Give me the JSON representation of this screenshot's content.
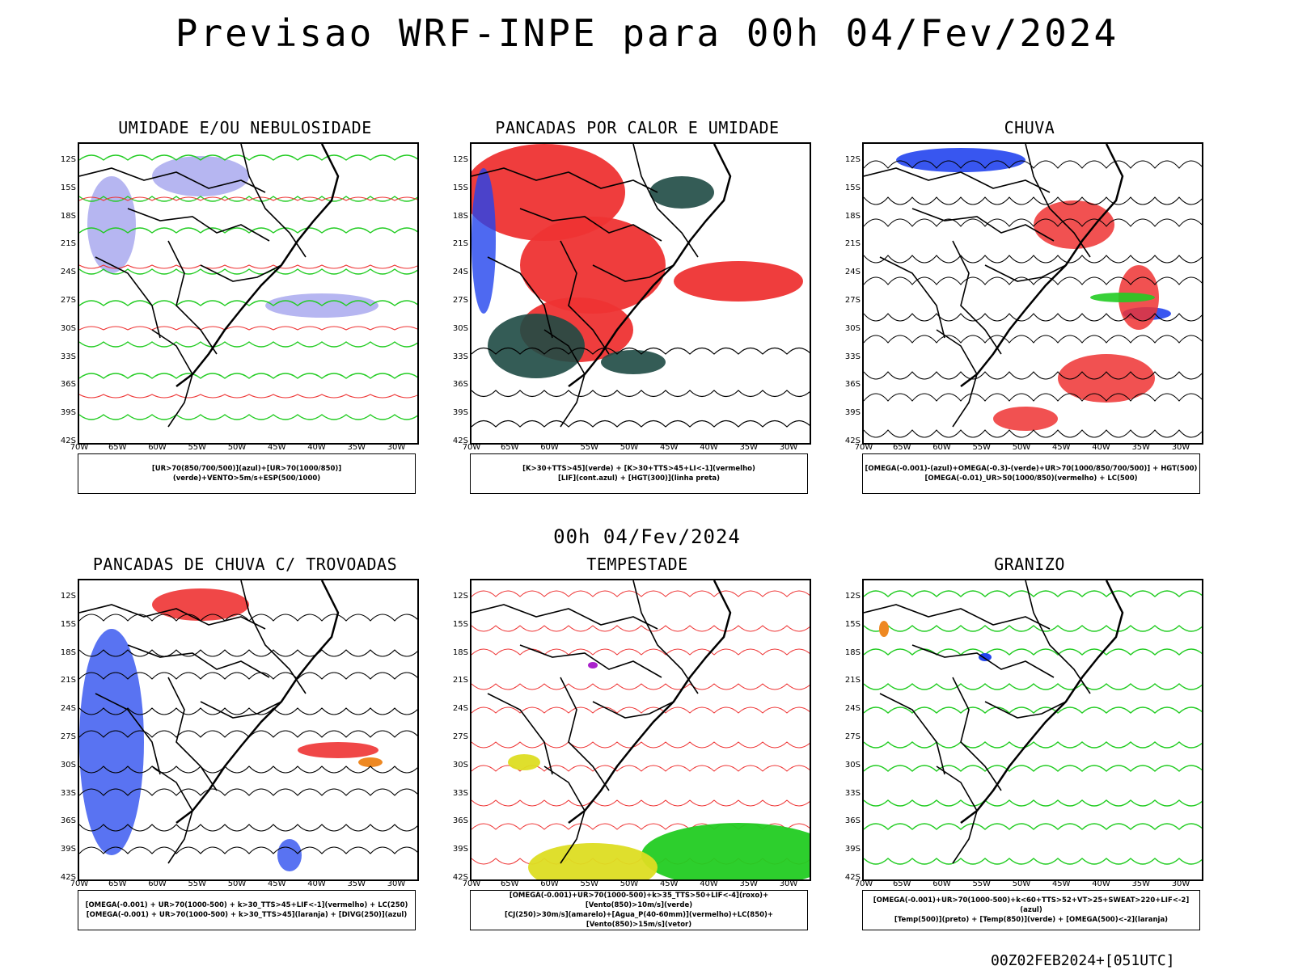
{
  "title": "Previsao WRF-INPE  para 00h 04/Fev/2024",
  "mid_date": "00h 04/Fev/2024",
  "footer": "00Z02FEB2024+[051UTC]",
  "lat_labels": [
    "12S",
    "15S",
    "18S",
    "21S",
    "24S",
    "27S",
    "30S",
    "33S",
    "36S",
    "39S",
    "42S"
  ],
  "lon_labels": [
    "70W",
    "65W",
    "60W",
    "55W",
    "50W",
    "45W",
    "40W",
    "35W",
    "30W"
  ],
  "colors": {
    "blue": "#2244ee",
    "green": "#22cc22",
    "red": "#ee3333",
    "lavender": "#a9a9ee",
    "darkgreen": "#1e4a44",
    "yellow": "#dddd22",
    "orange": "#ee8822",
    "purple": "#aa22cc"
  },
  "panels": [
    {
      "title": "UMIDADE E/OU NEBULOSIDADE",
      "legend": [
        "[UR>70(850/700/500)](azul)+[UR>70(1000/850)](verde)+VENTO>5m/s+ESP(500/1000)"
      ]
    },
    {
      "title": "PANCADAS POR CALOR E UMIDADE",
      "legend": [
        "[K>30+TTS>45](verde) + [K>30+TTS>45+LI<-1](vermelho)",
        "[LIF](cont.azul) + [HGT(300)](linha preta)"
      ]
    },
    {
      "title": "CHUVA",
      "legend": [
        "[OMEGA(-0.001)-(azul)+OMEGA(-0.3)-(verde)+UR>70(1000/850/700/500)] + HGT(500)",
        "[OMEGA(-0.01)_UR>50(1000/850)(vermelho) + LC(500)"
      ]
    },
    {
      "title": "PANCADAS DE CHUVA C/ TROVOADAS",
      "legend": [
        "[OMEGA(-0.001) + UR>70(1000-500) + k>30_TTS>45+LIF<-1](vermelho) + LC(250)",
        "[OMEGA(-0.001) + UR>70(1000-500) + k>30_TTS>45](laranja) + [DIVG(250)](azul)"
      ]
    },
    {
      "title": "TEMPESTADE",
      "legend": [
        "[OMEGA(-0.001)+UR>70(1000-500)+k>35_TTS>50+LIF<-4](roxo)+[Vento(850)>10m/s](verde)",
        "[CJ(250)>30m/s](amarelo)+[Agua_P(40-60mm)](vermelho)+LC(850)+[Vento(850)>15m/s](vetor)"
      ]
    },
    {
      "title": "GRANIZO",
      "legend": [
        "[OMEGA(-0.001)+UR>70(1000-500)+k<60+TTS>52+VT>25+SWEAT>220+LIF<-2](azul)",
        "[Temp(500)](preto) + [Temp(850)](verde) + [OMEGA(500)<-2](laranja)"
      ]
    }
  ]
}
